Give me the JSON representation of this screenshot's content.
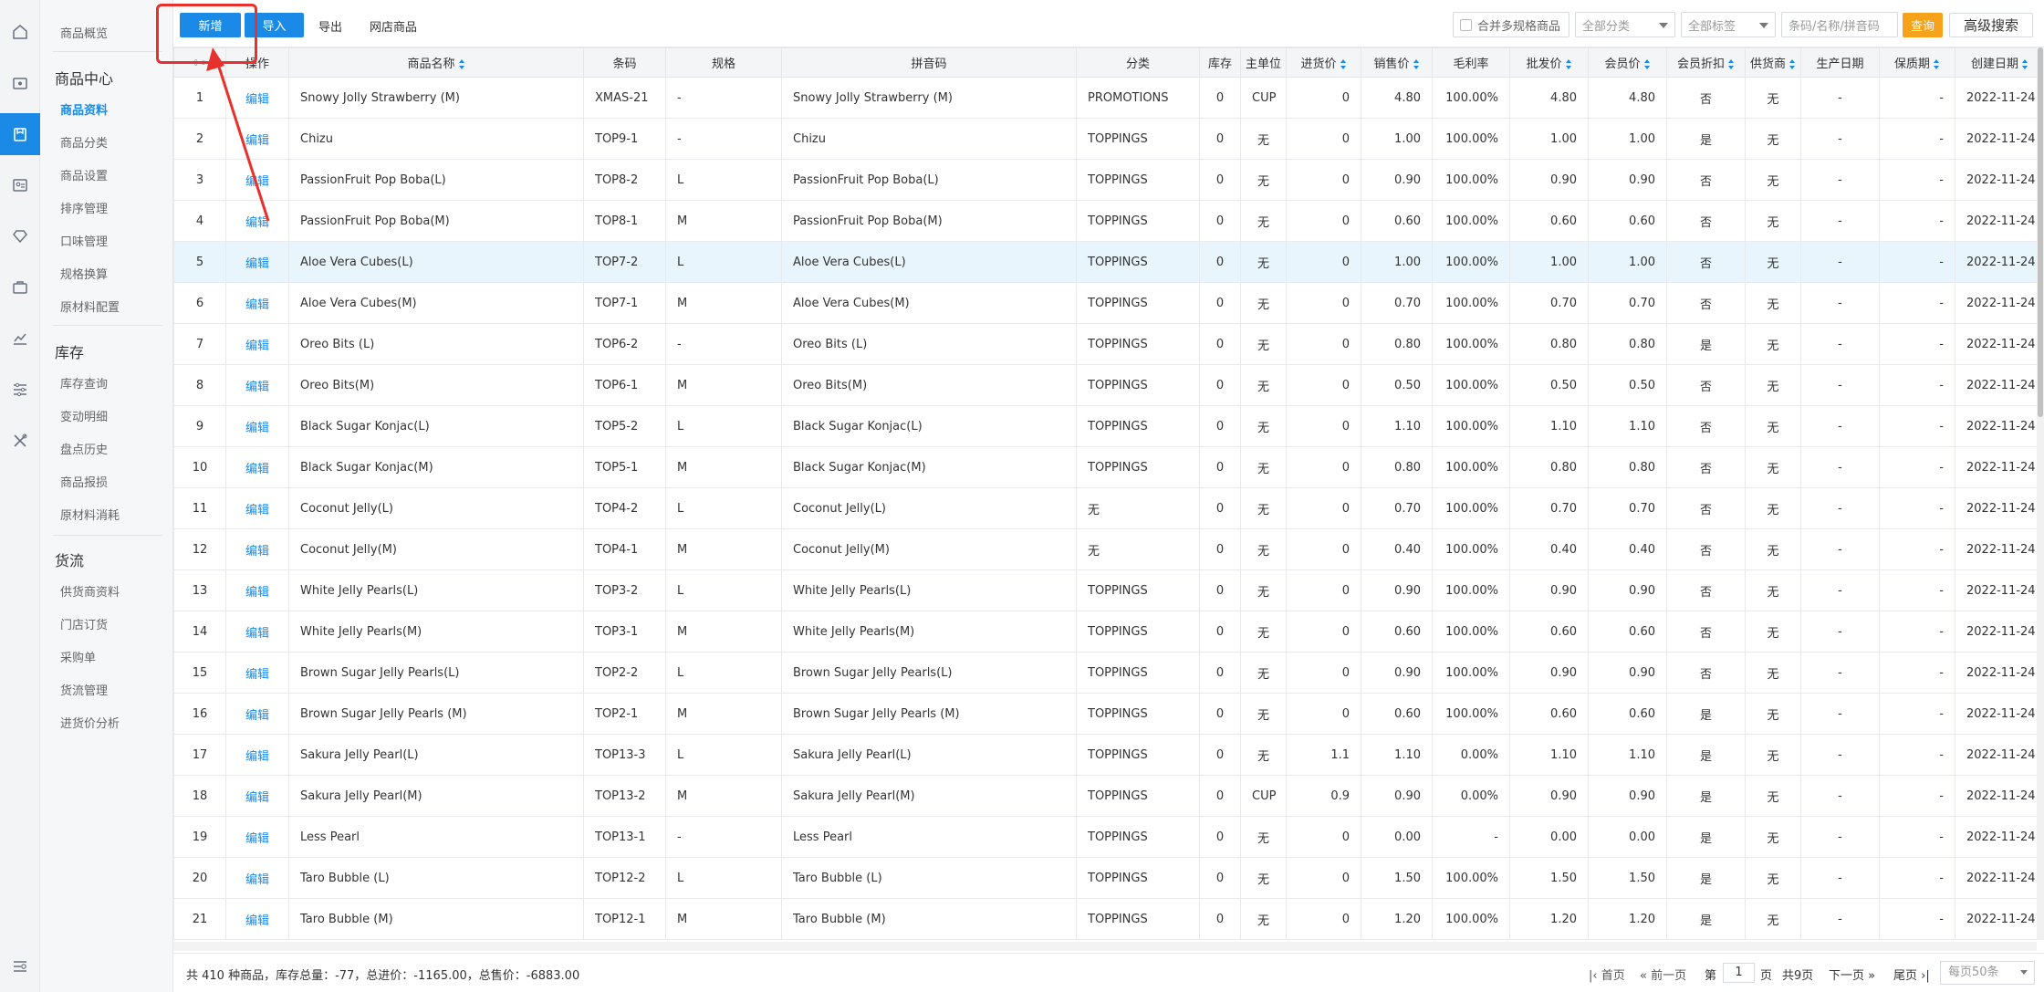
{
  "menu": {
    "overview": "商品概览",
    "sections": [
      {
        "title": "商品中心",
        "items": [
          "商品资料",
          "商品分类",
          "商品设置",
          "排序管理",
          "口味管理",
          "规格换算",
          "原材料配置"
        ]
      },
      {
        "title": "库存",
        "items": [
          "库存查询",
          "变动明细",
          "盘点历史",
          "商品报损",
          "原材料消耗"
        ]
      },
      {
        "title": "货流",
        "items": [
          "供货商资料",
          "门店订货",
          "采购单",
          "货流管理",
          "进货价分析"
        ]
      }
    ],
    "active_item": "商品资料"
  },
  "toolbar": {
    "add": "新增",
    "import": "导入",
    "export": "导出",
    "online_goods": "网店商品",
    "merge_label": "合并多规格商品",
    "category_select": "全部分类",
    "tag_select": "全部标签",
    "search_placeholder": "条码/名称/拼音码",
    "query": "查询",
    "advanced": "高级搜索"
  },
  "colors": {
    "accent": "#1a8ae6",
    "query_button": "#f7a21b",
    "highlight_border": "#e8302c",
    "row_highlight": "#e8f5fc"
  },
  "table": {
    "columns": [
      "",
      "操作",
      "商品名称",
      "条码",
      "规格",
      "拼音码",
      "分类",
      "库存",
      "主单位",
      "进货价",
      "销售价",
      "毛利率",
      "批发价",
      "会员价",
      "会员折扣",
      "供货商",
      "生产日期",
      "保质期",
      "创建日期"
    ],
    "sortable": [
      "商品名称",
      "进货价",
      "销售价",
      "批发价",
      "会员价",
      "会员折扣",
      "供货商",
      "保质期",
      "创建日期"
    ],
    "highlighted_row": 5,
    "edit_label": "编辑",
    "rows": [
      [
        "1",
        "Snowy Jolly Strawberry (M)",
        "XMAS-21",
        "-",
        "Snowy Jolly Strawberry (M)",
        "PROMOTIONS",
        "0",
        "CUP",
        "0",
        "4.80",
        "100.00%",
        "4.80",
        "4.80",
        "否",
        "无",
        "-",
        "-",
        "2022-11-24"
      ],
      [
        "2",
        "Chizu",
        "TOP9-1",
        "-",
        "Chizu",
        "TOPPINGS",
        "0",
        "无",
        "0",
        "1.00",
        "100.00%",
        "1.00",
        "1.00",
        "是",
        "无",
        "-",
        "-",
        "2022-11-24"
      ],
      [
        "3",
        "PassionFruit Pop Boba(L)",
        "TOP8-2",
        "L",
        "PassionFruit Pop Boba(L)",
        "TOPPINGS",
        "0",
        "无",
        "0",
        "0.90",
        "100.00%",
        "0.90",
        "0.90",
        "否",
        "无",
        "-",
        "-",
        "2022-11-24"
      ],
      [
        "4",
        "PassionFruit Pop Boba(M)",
        "TOP8-1",
        "M",
        "PassionFruit Pop Boba(M)",
        "TOPPINGS",
        "0",
        "无",
        "0",
        "0.60",
        "100.00%",
        "0.60",
        "0.60",
        "否",
        "无",
        "-",
        "-",
        "2022-11-24"
      ],
      [
        "5",
        "Aloe Vera Cubes(L)",
        "TOP7-2",
        "L",
        "Aloe Vera Cubes(L)",
        "TOPPINGS",
        "0",
        "无",
        "0",
        "1.00",
        "100.00%",
        "1.00",
        "1.00",
        "否",
        "无",
        "-",
        "-",
        "2022-11-24"
      ],
      [
        "6",
        "Aloe Vera Cubes(M)",
        "TOP7-1",
        "M",
        "Aloe Vera Cubes(M)",
        "TOPPINGS",
        "0",
        "无",
        "0",
        "0.70",
        "100.00%",
        "0.70",
        "0.70",
        "否",
        "无",
        "-",
        "-",
        "2022-11-24"
      ],
      [
        "7",
        "Oreo Bits (L)",
        "TOP6-2",
        "-",
        "Oreo Bits (L)",
        "TOPPINGS",
        "0",
        "无",
        "0",
        "0.80",
        "100.00%",
        "0.80",
        "0.80",
        "是",
        "无",
        "-",
        "-",
        "2022-11-24"
      ],
      [
        "8",
        "Oreo Bits(M)",
        "TOP6-1",
        "M",
        "Oreo Bits(M)",
        "TOPPINGS",
        "0",
        "无",
        "0",
        "0.50",
        "100.00%",
        "0.50",
        "0.50",
        "否",
        "无",
        "-",
        "-",
        "2022-11-24"
      ],
      [
        "9",
        "Black Sugar Konjac(L)",
        "TOP5-2",
        "L",
        "Black Sugar Konjac(L)",
        "TOPPINGS",
        "0",
        "无",
        "0",
        "1.10",
        "100.00%",
        "1.10",
        "1.10",
        "否",
        "无",
        "-",
        "-",
        "2022-11-24"
      ],
      [
        "10",
        "Black Sugar Konjac(M)",
        "TOP5-1",
        "M",
        "Black Sugar Konjac(M)",
        "TOPPINGS",
        "0",
        "无",
        "0",
        "0.80",
        "100.00%",
        "0.80",
        "0.80",
        "否",
        "无",
        "-",
        "-",
        "2022-11-24"
      ],
      [
        "11",
        "Coconut Jelly(L)",
        "TOP4-2",
        "L",
        "Coconut Jelly(L)",
        "无",
        "0",
        "无",
        "0",
        "0.70",
        "100.00%",
        "0.70",
        "0.70",
        "否",
        "无",
        "-",
        "-",
        "2022-11-24"
      ],
      [
        "12",
        "Coconut Jelly(M)",
        "TOP4-1",
        "M",
        "Coconut Jelly(M)",
        "无",
        "0",
        "无",
        "0",
        "0.40",
        "100.00%",
        "0.40",
        "0.40",
        "否",
        "无",
        "-",
        "-",
        "2022-11-24"
      ],
      [
        "13",
        "White Jelly Pearls(L)",
        "TOP3-2",
        "L",
        "White Jelly Pearls(L)",
        "TOPPINGS",
        "0",
        "无",
        "0",
        "0.90",
        "100.00%",
        "0.90",
        "0.90",
        "否",
        "无",
        "-",
        "-",
        "2022-11-24"
      ],
      [
        "14",
        "White Jelly Pearls(M)",
        "TOP3-1",
        "M",
        "White Jelly Pearls(M)",
        "TOPPINGS",
        "0",
        "无",
        "0",
        "0.60",
        "100.00%",
        "0.60",
        "0.60",
        "否",
        "无",
        "-",
        "-",
        "2022-11-24"
      ],
      [
        "15",
        "Brown Sugar Jelly Pearls(L)",
        "TOP2-2",
        "L",
        "Brown Sugar Jelly Pearls(L)",
        "TOPPINGS",
        "0",
        "无",
        "0",
        "0.90",
        "100.00%",
        "0.90",
        "0.90",
        "否",
        "无",
        "-",
        "-",
        "2022-11-24"
      ],
      [
        "16",
        "Brown Sugar Jelly Pearls (M)",
        "TOP2-1",
        "M",
        "Brown Sugar Jelly Pearls (M)",
        "TOPPINGS",
        "0",
        "无",
        "0",
        "0.60",
        "100.00%",
        "0.60",
        "0.60",
        "是",
        "无",
        "-",
        "-",
        "2022-11-24"
      ],
      [
        "17",
        "Sakura Jelly Pearl(L)",
        "TOP13-3",
        "L",
        "Sakura Jelly Pearl(L)",
        "TOPPINGS",
        "0",
        "无",
        "1.1",
        "1.10",
        "0.00%",
        "1.10",
        "1.10",
        "是",
        "无",
        "-",
        "-",
        "2022-11-24"
      ],
      [
        "18",
        "Sakura Jelly Pearl(M)",
        "TOP13-2",
        "M",
        "Sakura Jelly Pearl(M)",
        "TOPPINGS",
        "0",
        "CUP",
        "0.9",
        "0.90",
        "0.00%",
        "0.90",
        "0.90",
        "是",
        "无",
        "-",
        "-",
        "2022-11-24"
      ],
      [
        "19",
        "Less Pearl",
        "TOP13-1",
        "-",
        "Less Pearl",
        "TOPPINGS",
        "0",
        "无",
        "0",
        "0.00",
        "-",
        "0.00",
        "0.00",
        "是",
        "无",
        "-",
        "-",
        "2022-11-24"
      ],
      [
        "20",
        "Taro Bubble (L)",
        "TOP12-2",
        "L",
        "Taro Bubble (L)",
        "TOPPINGS",
        "0",
        "无",
        "0",
        "1.50",
        "100.00%",
        "1.50",
        "1.50",
        "是",
        "无",
        "-",
        "-",
        "2022-11-24"
      ],
      [
        "21",
        "Taro Bubble (M)",
        "TOP12-1",
        "M",
        "Taro Bubble (M)",
        "TOPPINGS",
        "0",
        "无",
        "0",
        "1.20",
        "100.00%",
        "1.20",
        "1.20",
        "是",
        "无",
        "-",
        "-",
        "2022-11-24"
      ]
    ]
  },
  "footer": {
    "summary": "共 410 种商品，库存总量：-77，总进价：-1165.00，总售价：-6883.00",
    "first": "首页",
    "prev": "前一页",
    "page_prefix": "第",
    "page_value": "1",
    "page_suffix": "页",
    "total_pages": "共9页",
    "next": "下一页",
    "last": "尾页",
    "page_size": "每页50条"
  }
}
